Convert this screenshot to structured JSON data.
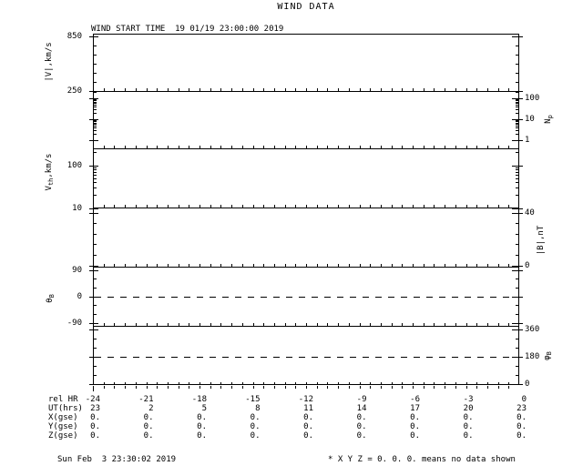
{
  "title": "WIND DATA",
  "subtitle": "WIND START TIME  19 01/19 23:00:00 2019",
  "footer_left": "Sun Feb  3 23:30:02 2019",
  "footer_right": "* X Y Z = 0. 0. 0. means no data shown",
  "axis_titles": {
    "v": {
      "pre": "|V|,km/s",
      "sub": "",
      "post": ""
    },
    "np": {
      "pre": "N",
      "sub": "p",
      "post": ""
    },
    "vth": {
      "pre": "V",
      "sub": "th",
      "post": ",km/s"
    },
    "b": {
      "pre": "|B|,nT",
      "sub": "",
      "post": ""
    },
    "theta": {
      "pre": "θ",
      "sub": "B",
      "post": ""
    },
    "phi": {
      "pre": "φ",
      "sub": "B",
      "post": ""
    }
  },
  "bottom_table": {
    "rows": [
      {
        "label": "rel HR",
        "values": [
          "-24",
          "-21",
          "-18",
          "-15",
          "-12",
          "-9",
          "-6",
          "-3",
          "0"
        ]
      },
      {
        "label": "UT(hrs)",
        "values": [
          "23",
          "2",
          "5",
          "8",
          "11",
          "14",
          "17",
          "20",
          "23"
        ]
      },
      {
        "label": "X(gse)",
        "values": [
          "0.",
          "0.",
          "0.",
          "0.",
          "0.",
          "0.",
          "0.",
          "0.",
          "0."
        ]
      },
      {
        "label": "Y(gse)",
        "values": [
          "0.",
          "0.",
          "0.",
          "0.",
          "0.",
          "0.",
          "0.",
          "0.",
          "0."
        ]
      },
      {
        "label": "Z(gse)",
        "values": [
          "0.",
          "0.",
          "0.",
          "0.",
          "0.",
          "0.",
          "0.",
          "0.",
          "0."
        ]
      }
    ]
  },
  "chart_data": {
    "type": "line",
    "title": "WIND DATA",
    "start_time": "19 01/19 23:00:00 2019",
    "x_axis": {
      "label": "rel HR",
      "range": [
        -24,
        0
      ],
      "major_step": 3,
      "major_ticks": [
        -24,
        -21,
        -18,
        -15,
        -12,
        -9,
        -6,
        -3,
        0
      ],
      "ut_hours": [
        23,
        2,
        5,
        8,
        11,
        14,
        17,
        20,
        23
      ]
    },
    "panels": [
      {
        "name": "flow-speed",
        "ylabel": "|V|,km/s",
        "scale": "linear",
        "side": "left",
        "yticks": [
          850,
          250
        ],
        "series": [],
        "no_data": true
      },
      {
        "name": "proton-density",
        "ylabel": "Np",
        "scale": "log",
        "side": "right",
        "yticks": [
          100,
          10,
          1
        ],
        "series": [],
        "no_data": true
      },
      {
        "name": "thermal-speed",
        "ylabel": "Vth,km/s",
        "scale": "log",
        "side": "left",
        "yticks": [
          100,
          10
        ],
        "series": [],
        "no_data": true
      },
      {
        "name": "b-magnitude",
        "ylabel": "|B|,nT",
        "scale": "linear",
        "side": "right",
        "yticks": [
          40,
          0
        ],
        "series": [],
        "no_data": true
      },
      {
        "name": "theta-b",
        "ylabel": "θB",
        "scale": "linear",
        "side": "left",
        "yticks": [
          90,
          0,
          -90
        ],
        "ref_line": 0,
        "series": [],
        "no_data": true
      },
      {
        "name": "phi-b",
        "ylabel": "φB",
        "scale": "linear",
        "side": "right",
        "yticks": [
          360,
          180,
          0
        ],
        "ref_line": 180,
        "series": [],
        "no_data": true
      }
    ],
    "grid": false,
    "note": "All X Y Z = 0. 0. 0. — no data shown; panels are empty except dashed reference lines at θB=0 and φB=180"
  }
}
